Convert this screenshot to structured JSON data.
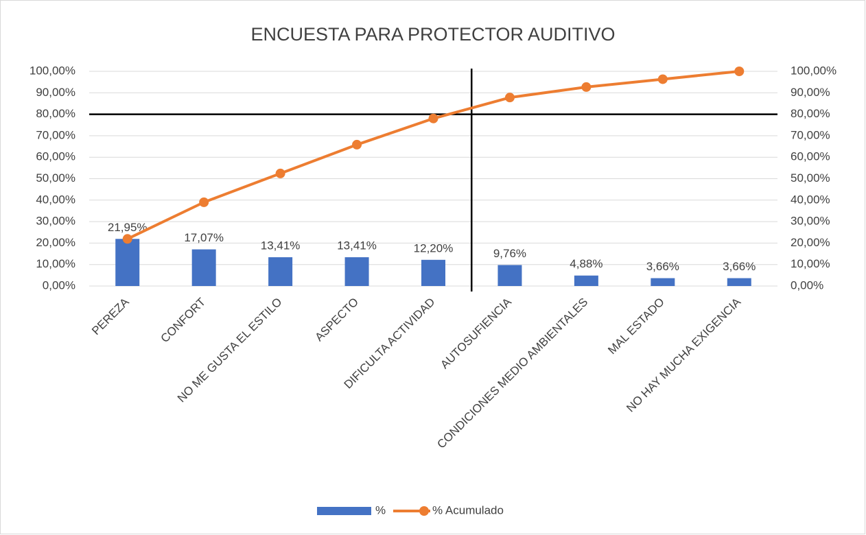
{
  "chart_data": {
    "type": "pareto",
    "title": "ENCUESTA PARA PROTECTOR AUDITIVO",
    "categories": [
      "PEREZA",
      "CONFORT",
      "NO ME GUSTA EL ESTILO",
      "ASPECTO",
      "DIFICULTA ACTIVIDAD",
      "AUTOSUFIENCIA",
      "CONDICIONES MEDIO AMBIENTALES",
      "MAL ESTADO",
      "NO HAY MUCHA EXIGENCIA"
    ],
    "series": [
      {
        "name": "%",
        "type": "bar",
        "color": "#4472c4",
        "values": [
          21.95,
          17.07,
          13.41,
          13.41,
          12.2,
          9.76,
          4.88,
          3.66,
          3.66
        ],
        "value_labels": [
          "21,95%",
          "17,07%",
          "13,41%",
          "13,41%",
          "12,20%",
          "9,76%",
          "4,88%",
          "3,66%",
          "3,66%"
        ]
      },
      {
        "name": "% Acumulado",
        "type": "line",
        "axis": "y2",
        "color": "#ed7d31",
        "values": [
          21.95,
          39.02,
          52.43,
          65.84,
          78.04,
          87.8,
          92.68,
          96.34,
          100
        ]
      }
    ],
    "ylim": [
      0,
      100
    ],
    "yticks": [
      {
        "value": 0,
        "label": "0,00%"
      },
      {
        "value": 10,
        "label": "10,00%"
      },
      {
        "value": 20,
        "label": "20,00%"
      },
      {
        "value": 30,
        "label": "30,00%"
      },
      {
        "value": 40,
        "label": "40,00%"
      },
      {
        "value": 50,
        "label": "50,00%"
      },
      {
        "value": 60,
        "label": "60,00%"
      },
      {
        "value": 70,
        "label": "70,00%"
      },
      {
        "value": 80,
        "label": "80,00%"
      },
      {
        "value": 90,
        "label": "90,00%"
      },
      {
        "value": 100,
        "label": "100,00%"
      }
    ],
    "y2lim": [
      0,
      100
    ],
    "y2ticks": [
      {
        "value": 0,
        "label": "0,00%"
      },
      {
        "value": 10,
        "label": "10,00%"
      },
      {
        "value": 20,
        "label": "20,00%"
      },
      {
        "value": 30,
        "label": "30,00%"
      },
      {
        "value": 40,
        "label": "40,00%"
      },
      {
        "value": 50,
        "label": "50,00%"
      },
      {
        "value": 60,
        "label": "60,00%"
      },
      {
        "value": 70,
        "label": "70,00%"
      },
      {
        "value": 80,
        "label": "80,00%"
      },
      {
        "value": 90,
        "label": "90,00%"
      },
      {
        "value": 100,
        "label": "100,00%"
      }
    ],
    "threshold": 80,
    "grid": true,
    "legend": "bottom"
  }
}
